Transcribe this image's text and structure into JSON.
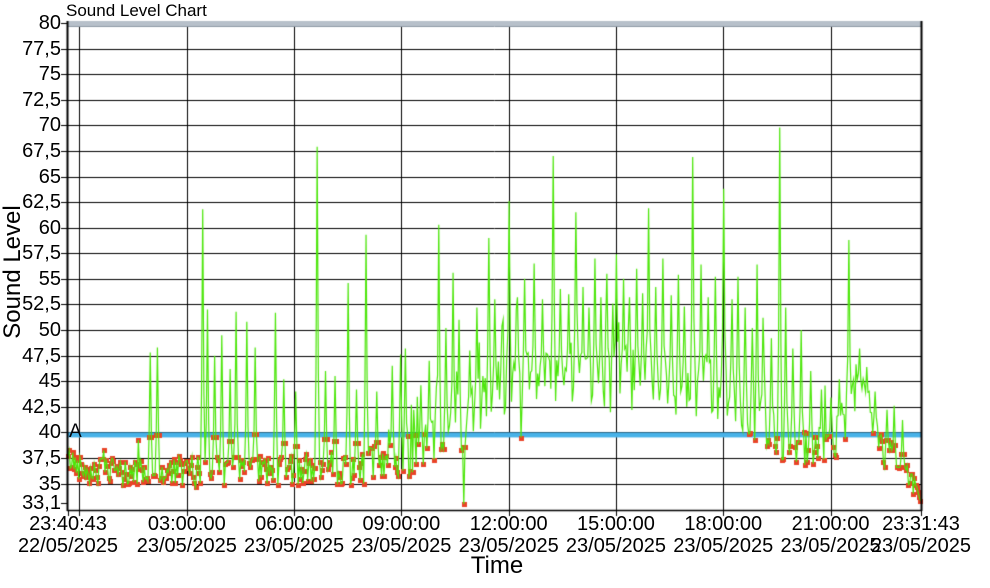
{
  "chart_data": {
    "type": "line",
    "title": "Sound Level Chart",
    "grid": true,
    "legend": "none",
    "background": "#ffffff",
    "frame_color": "#000000",
    "top_band_color": "#b7c0ca",
    "x_axis": {
      "title": "Time",
      "start_label": {
        "time": "23:40:43",
        "date": "22/05/2025"
      },
      "end_label": {
        "time": "23:31:43",
        "date": "23/05/2025"
      },
      "total_minutes": 1431,
      "gridline_minutes": [
        19.283,
        199.283,
        379.283,
        559.283,
        739.283,
        919.283,
        1099.283,
        1279.283
      ],
      "tick_minutes": [
        0,
        19.283,
        199.283,
        379.283,
        559.283,
        739.283,
        919.283,
        1099.283,
        1279.283,
        1431
      ],
      "labels": [
        {
          "minutes": 0,
          "time": "23:40:43",
          "date": "22/05/2025"
        },
        {
          "minutes": 199.283,
          "time": "03:00:00",
          "date": "23/05/2025"
        },
        {
          "minutes": 379.283,
          "time": "06:00:00",
          "date": "23/05/2025"
        },
        {
          "minutes": 559.283,
          "time": "09:00:00",
          "date": "23/05/2025"
        },
        {
          "minutes": 739.283,
          "time": "12:00:00",
          "date": "23/05/2025"
        },
        {
          "minutes": 919.283,
          "time": "15:00:00",
          "date": "23/05/2025"
        },
        {
          "minutes": 1099.283,
          "time": "18:00:00",
          "date": "23/05/2025"
        },
        {
          "minutes": 1279.283,
          "time": "21:00:00",
          "date": "23/05/2025"
        },
        {
          "minutes": 1431,
          "time": "23:31:43",
          "date": "23/05/2025"
        }
      ]
    },
    "y_axis": {
      "title": "Sound Level",
      "min": 32.42,
      "max": 80,
      "major_ticks": [
        80,
        77.5,
        75,
        72.5,
        70,
        67.5,
        65,
        62.5,
        60,
        57.5,
        55,
        52.5,
        50,
        47.5,
        45,
        42.5,
        40,
        37.5,
        35
      ],
      "extra_tick": 33.1,
      "decimal_separator": ","
    },
    "threshold": {
      "label": "A",
      "value": 40,
      "color": "#48b2e8",
      "thickness": 5
    },
    "series": {
      "name": "Sound Level",
      "line_color": "#4ce60a",
      "marker_color": "#ea4228",
      "marker_shape": "square",
      "marker_size": 5,
      "marker_rule": "value_below_threshold",
      "sample_step_minutes": 2,
      "seed": 42,
      "baseline": [
        [
          0,
          37.5,
          1.2
        ],
        [
          15,
          36.8,
          1.3
        ],
        [
          40,
          36.3,
          1.4
        ],
        [
          90,
          36.0,
          1.4
        ],
        [
          150,
          36.1,
          1.5
        ],
        [
          210,
          36.2,
          1.6
        ],
        [
          270,
          36.1,
          1.6
        ],
        [
          330,
          36.3,
          1.5
        ],
        [
          390,
          36.4,
          1.6
        ],
        [
          450,
          36.5,
          1.7
        ],
        [
          510,
          36.8,
          1.8
        ],
        [
          555,
          37.5,
          2.1
        ],
        [
          595,
          38.6,
          2.4
        ],
        [
          635,
          39.6,
          2.6
        ],
        [
          665,
          41.0,
          2.7
        ],
        [
          695,
          42.8,
          2.8
        ],
        [
          720,
          44.0,
          2.9
        ],
        [
          760,
          45.0,
          3.0
        ],
        [
          820,
          45.2,
          3.1
        ],
        [
          880,
          45.0,
          3.2
        ],
        [
          940,
          45.3,
          3.2
        ],
        [
          1000,
          44.8,
          3.2
        ],
        [
          1060,
          44.3,
          3.1
        ],
        [
          1100,
          43.8,
          3.0
        ],
        [
          1130,
          42.6,
          2.9
        ],
        [
          1160,
          40.8,
          2.6
        ],
        [
          1190,
          39.3,
          2.2
        ],
        [
          1220,
          38.7,
          1.9
        ],
        [
          1255,
          38.6,
          1.8
        ],
        [
          1285,
          39.2,
          2.0
        ],
        [
          1305,
          41.5,
          2.4
        ],
        [
          1322,
          44.2,
          2.5
        ],
        [
          1340,
          42.8,
          2.5
        ],
        [
          1358,
          39.5,
          2.2
        ],
        [
          1378,
          37.5,
          1.7
        ],
        [
          1398,
          36.5,
          1.4
        ],
        [
          1415,
          35.2,
          1.1
        ],
        [
          1431,
          33.8,
          0.7
        ]
      ],
      "bursts": [
        {
          "t0": 0,
          "t1": 540,
          "p": 0.02,
          "min": 1,
          "max": 4
        },
        {
          "t0": 540,
          "t1": 700,
          "p": 0.05,
          "min": 2,
          "max": 7
        },
        {
          "t0": 700,
          "t1": 1150,
          "p": 0.07,
          "min": 3,
          "max": 8
        },
        {
          "t0": 1150,
          "t1": 1290,
          "p": 0.05,
          "min": 2,
          "max": 7
        },
        {
          "t0": 1290,
          "t1": 1431,
          "p": 0.03,
          "min": 1,
          "max": 4
        }
      ],
      "down_dips": [
        {
          "t0": 700,
          "t1": 1150,
          "p": 0.03,
          "min": 38.4,
          "max": 39.7
        }
      ],
      "spikes": [
        [
          138,
          47.8
        ],
        [
          149,
          48.3
        ],
        [
          225,
          61.8
        ],
        [
          233,
          52.0
        ],
        [
          245,
          47.5
        ],
        [
          257,
          49.5
        ],
        [
          271,
          46.2
        ],
        [
          281,
          51.8
        ],
        [
          299,
          50.8
        ],
        [
          313,
          48.3
        ],
        [
          348,
          51.7
        ],
        [
          362,
          45.2
        ],
        [
          381,
          44.0
        ],
        [
          417,
          67.9
        ],
        [
          431,
          46.0
        ],
        [
          448,
          45.5
        ],
        [
          469,
          54.6
        ],
        [
          484,
          44.2
        ],
        [
          499,
          59.3
        ],
        [
          517,
          44.0
        ],
        [
          543,
          46.5
        ],
        [
          557,
          47.6
        ],
        [
          566,
          48.2
        ],
        [
          591,
          44.6
        ],
        [
          606,
          47.0
        ],
        [
          621,
          60.3
        ],
        [
          634,
          50.2
        ],
        [
          645,
          55.6
        ],
        [
          656,
          51.0
        ],
        [
          673,
          48.0
        ],
        [
          686,
          52.2
        ],
        [
          706,
          59.0
        ],
        [
          716,
          53.0
        ],
        [
          727,
          50.4
        ],
        [
          739,
          62.6
        ],
        [
          753,
          53.2
        ],
        [
          766,
          55.0
        ],
        [
          781,
          56.5
        ],
        [
          796,
          53.0
        ],
        [
          813,
          67.0
        ],
        [
          826,
          54.0
        ],
        [
          839,
          53.5
        ],
        [
          851,
          61.5
        ],
        [
          863,
          54.2
        ],
        [
          874,
          52.2
        ],
        [
          883,
          57.0
        ],
        [
          894,
          53.2
        ],
        [
          903,
          55.5
        ],
        [
          913,
          52.6
        ],
        [
          920,
          57.4
        ],
        [
          931,
          55.0
        ],
        [
          941,
          53.2
        ],
        [
          953,
          56.0
        ],
        [
          964,
          53.6
        ],
        [
          974,
          61.9
        ],
        [
          986,
          54.2
        ],
        [
          998,
          57.0
        ],
        [
          1011,
          53.4
        ],
        [
          1023,
          55.4
        ],
        [
          1033,
          52.3
        ],
        [
          1048,
          66.9
        ],
        [
          1061,
          56.4
        ],
        [
          1073,
          53.2
        ],
        [
          1086,
          55.2
        ],
        [
          1100,
          63.8
        ],
        [
          1113,
          53.0
        ],
        [
          1123,
          55.2
        ],
        [
          1136,
          52.2
        ],
        [
          1148,
          50.2
        ],
        [
          1156,
          56.4
        ],
        [
          1166,
          51.2
        ],
        [
          1179,
          49.2
        ],
        [
          1193,
          69.8
        ],
        [
          1204,
          52.2
        ],
        [
          1216,
          48.2
        ],
        [
          1229,
          50.0
        ],
        [
          1246,
          46.0
        ],
        [
          1263,
          44.2
        ],
        [
          1279,
          43.4
        ],
        [
          1293,
          45.2
        ],
        [
          1310,
          58.8
        ],
        [
          1327,
          48.2
        ],
        [
          1339,
          46.4
        ],
        [
          1353,
          44.0
        ],
        [
          1373,
          42.2
        ],
        [
          1386,
          42.6
        ],
        [
          1399,
          41.2
        ]
      ],
      "dips": [
        [
          663,
          33.0
        ]
      ]
    }
  },
  "labels": {
    "title": "Sound Level Chart",
    "x_title": "Time",
    "y_title": "Sound Level",
    "threshold": "A"
  }
}
